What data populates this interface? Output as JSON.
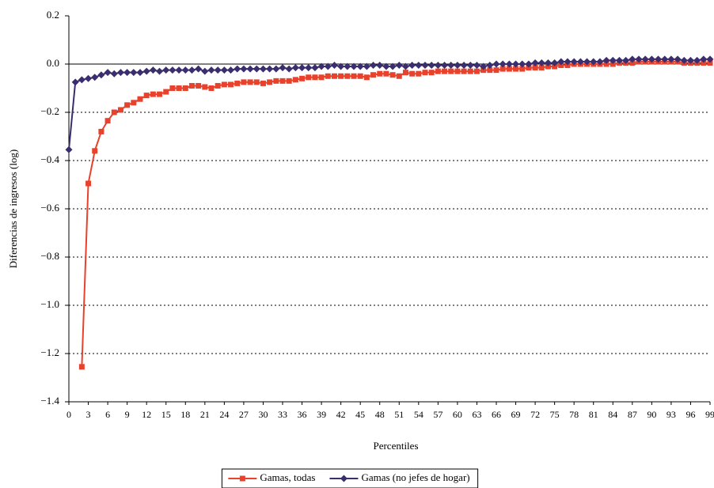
{
  "chart_data": {
    "type": "line",
    "x_label": "Percentiles",
    "y_label": "Diferencias de ingresos (log)",
    "x": [
      0,
      1,
      2,
      3,
      4,
      5,
      6,
      7,
      8,
      9,
      10,
      11,
      12,
      13,
      14,
      15,
      16,
      17,
      18,
      19,
      20,
      21,
      22,
      23,
      24,
      25,
      26,
      27,
      28,
      29,
      30,
      31,
      32,
      33,
      34,
      35,
      36,
      37,
      38,
      39,
      40,
      41,
      42,
      43,
      44,
      45,
      46,
      47,
      48,
      49,
      50,
      51,
      52,
      53,
      54,
      55,
      56,
      57,
      58,
      59,
      60,
      61,
      62,
      63,
      64,
      65,
      66,
      67,
      68,
      69,
      70,
      71,
      72,
      73,
      74,
      75,
      76,
      77,
      78,
      79,
      80,
      81,
      82,
      83,
      84,
      85,
      86,
      87,
      88,
      89,
      90,
      91,
      92,
      93,
      94,
      95,
      96,
      97,
      98,
      99
    ],
    "series": [
      {
        "name": "Gamas, todas",
        "color": "#e8412c",
        "marker": "square",
        "values": [
          null,
          null,
          -1.255,
          -0.495,
          -0.36,
          -0.28,
          -0.235,
          -0.2,
          -0.19,
          -0.17,
          -0.16,
          -0.145,
          -0.13,
          -0.125,
          -0.125,
          -0.115,
          -0.1,
          -0.1,
          -0.1,
          -0.09,
          -0.09,
          -0.095,
          -0.1,
          -0.09,
          -0.085,
          -0.085,
          -0.08,
          -0.075,
          -0.075,
          -0.075,
          -0.08,
          -0.075,
          -0.07,
          -0.07,
          -0.07,
          -0.065,
          -0.06,
          -0.055,
          -0.055,
          -0.055,
          -0.05,
          -0.05,
          -0.05,
          -0.05,
          -0.05,
          -0.05,
          -0.055,
          -0.045,
          -0.04,
          -0.04,
          -0.045,
          -0.05,
          -0.035,
          -0.04,
          -0.04,
          -0.035,
          -0.035,
          -0.03,
          -0.03,
          -0.03,
          -0.03,
          -0.03,
          -0.03,
          -0.03,
          -0.025,
          -0.025,
          -0.025,
          -0.02,
          -0.02,
          -0.02,
          -0.02,
          -0.015,
          -0.015,
          -0.015,
          -0.01,
          -0.01,
          -0.005,
          -0.005,
          0,
          0,
          0,
          0,
          0,
          0,
          0,
          0.005,
          0.005,
          0.005,
          0.01,
          0.01,
          0.01,
          0.01,
          0.01,
          0.01,
          0.01,
          0.005,
          0.005,
          0.005,
          0.005,
          0.005
        ]
      },
      {
        "name": "Gamas (no jefes de hogar)",
        "color": "#3b2e6e",
        "marker": "diamond",
        "values": [
          -0.355,
          -0.075,
          -0.065,
          -0.06,
          -0.055,
          -0.045,
          -0.035,
          -0.04,
          -0.035,
          -0.035,
          -0.035,
          -0.035,
          -0.03,
          -0.025,
          -0.03,
          -0.025,
          -0.025,
          -0.025,
          -0.025,
          -0.025,
          -0.02,
          -0.03,
          -0.025,
          -0.025,
          -0.025,
          -0.025,
          -0.02,
          -0.02,
          -0.02,
          -0.02,
          -0.02,
          -0.02,
          -0.02,
          -0.015,
          -0.02,
          -0.015,
          -0.015,
          -0.015,
          -0.015,
          -0.01,
          -0.01,
          -0.005,
          -0.01,
          -0.01,
          -0.01,
          -0.01,
          -0.01,
          -0.005,
          -0.005,
          -0.01,
          -0.01,
          -0.005,
          -0.01,
          -0.005,
          -0.005,
          -0.005,
          -0.005,
          -0.005,
          -0.005,
          -0.005,
          -0.005,
          -0.005,
          -0.005,
          -0.005,
          -0.01,
          -0.005,
          0,
          0,
          0,
          0,
          0,
          0,
          0.005,
          0.005,
          0.005,
          0.005,
          0.01,
          0.01,
          0.01,
          0.01,
          0.01,
          0.01,
          0.01,
          0.015,
          0.015,
          0.015,
          0.015,
          0.02,
          0.02,
          0.02,
          0.02,
          0.02,
          0.02,
          0.02,
          0.02,
          0.015,
          0.015,
          0.015,
          0.02,
          0.02
        ]
      }
    ],
    "xlim": [
      0,
      99
    ],
    "xticks": [
      0,
      3,
      6,
      9,
      12,
      15,
      18,
      21,
      24,
      27,
      30,
      33,
      36,
      39,
      42,
      45,
      48,
      51,
      54,
      57,
      60,
      63,
      66,
      69,
      72,
      75,
      78,
      81,
      84,
      87,
      90,
      93,
      96,
      99
    ],
    "ylim": [
      -1.4,
      0.2
    ],
    "yticks": [
      {
        "value": -1.4,
        "label": "−1.4"
      },
      {
        "value": -1.2,
        "label": "−1.2"
      },
      {
        "value": -1.0,
        "label": "−1.0"
      },
      {
        "value": -0.8,
        "label": "−0.8"
      },
      {
        "value": -0.6,
        "label": "−0.6"
      },
      {
        "value": -0.4,
        "label": "−0.4"
      },
      {
        "value": -0.2,
        "label": "−0.2"
      },
      {
        "value": 0,
        "label": "0.0"
      },
      0.2
    ],
    "grid": true,
    "legend": "bottom"
  }
}
